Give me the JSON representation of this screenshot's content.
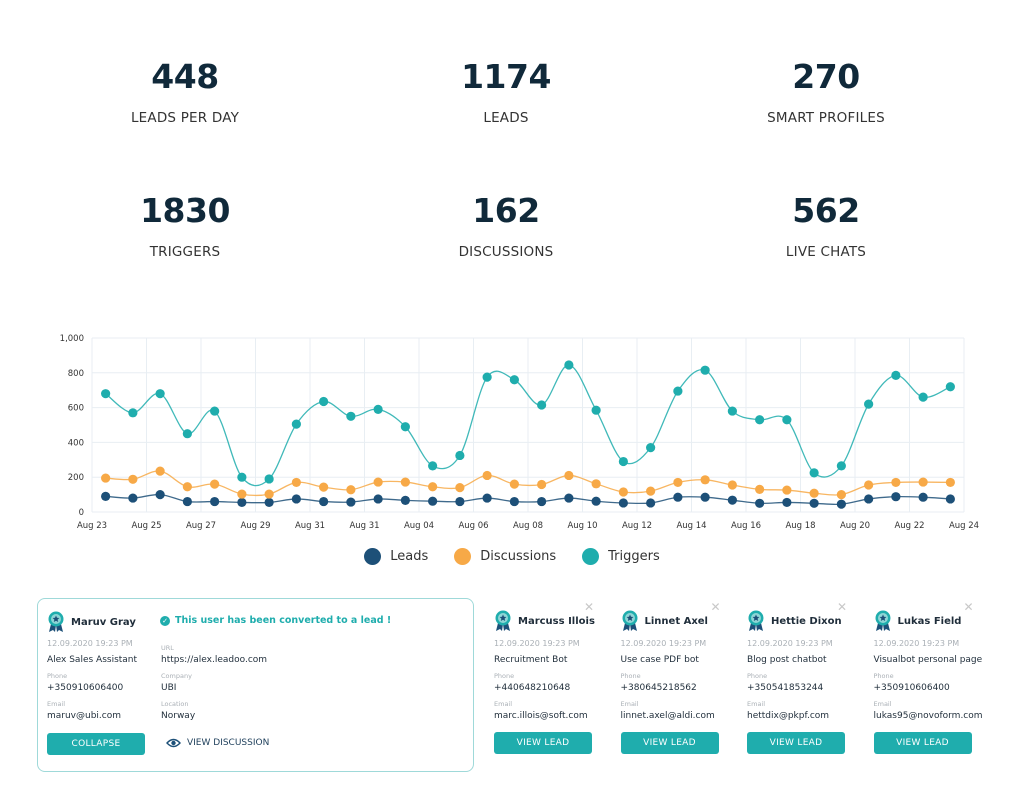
{
  "stats": [
    {
      "value": "448",
      "label": "LEADS PER DAY"
    },
    {
      "value": "1174",
      "label": "LEADS"
    },
    {
      "value": "270",
      "label": "SMART PROFILES"
    },
    {
      "value": "1830",
      "label": "TRIGGERS"
    },
    {
      "value": "162",
      "label": "DISCUSSIONS"
    },
    {
      "value": "562",
      "label": "LIVE CHATS"
    }
  ],
  "chart_data": {
    "type": "line",
    "ylim": [
      0,
      1000
    ],
    "y_ticks": [
      "0",
      "200",
      "400",
      "600",
      "800",
      "1,000"
    ],
    "x_tick_labels": [
      "Aug 23",
      "Aug 25",
      "Aug 27",
      "Aug 29",
      "Aug 31",
      "Aug 31",
      "Aug 04",
      "Aug 06",
      "Aug 08",
      "Aug 10",
      "Aug 12",
      "Aug 14",
      "Aug 16",
      "Aug 18",
      "Aug 20",
      "Aug 22",
      "Aug 24"
    ],
    "grid": true,
    "legend": "bottom",
    "series": [
      {
        "name": "Leads",
        "color": "#1d5078",
        "values": [
          90,
          80,
          100,
          60,
          60,
          55,
          55,
          75,
          60,
          57,
          75,
          67,
          62,
          60,
          80,
          60,
          60,
          80,
          62,
          52,
          52,
          85,
          85,
          68,
          50,
          55,
          50,
          45,
          75,
          88,
          85,
          75
        ]
      },
      {
        "name": "Discussions",
        "color": "#f7a947",
        "values": [
          195,
          188,
          235,
          145,
          160,
          103,
          103,
          170,
          143,
          128,
          172,
          172,
          145,
          140,
          210,
          160,
          158,
          210,
          162,
          115,
          120,
          170,
          185,
          155,
          130,
          126,
          108,
          100,
          155,
          170,
          172,
          170
        ]
      },
      {
        "name": "Triggers",
        "color": "#1fadad",
        "values": [
          680,
          570,
          680,
          450,
          580,
          200,
          190,
          505,
          635,
          550,
          590,
          490,
          265,
          325,
          775,
          760,
          615,
          845,
          585,
          290,
          370,
          695,
          815,
          580,
          530,
          530,
          225,
          265,
          620,
          785,
          660,
          720
        ]
      }
    ]
  },
  "main_card": {
    "name": "Maruv Gray",
    "converted": "This user has been converted to a lead !",
    "date": "12.09.2020 19:23 PM",
    "bot": "Alex Sales Assistant",
    "phone_label": "Phone",
    "phone": "+350910606400",
    "email_label": "Email",
    "email": "maruv@ubi.com",
    "url_label": "URL",
    "url": "https://alex.leadoo.com",
    "company_label": "Company",
    "company": "UBI",
    "location_label": "Location",
    "location": "Norway",
    "collapse": "COLLAPSE",
    "view_discussion": "VIEW DISCUSSION"
  },
  "lead_cards": [
    {
      "name": "Marcuss Illois",
      "date": "12.09.2020 19:23 PM",
      "bot": "Recruitment Bot",
      "phone_label": "Phone",
      "phone": "+440648210648",
      "email_label": "Email",
      "email": "marc.illois@soft.com",
      "button": "VIEW LEAD"
    },
    {
      "name": "Linnet Axel",
      "date": "12.09.2020 19:23 PM",
      "bot": "Use case PDF bot",
      "phone_label": "Phone",
      "phone": "+380645218562",
      "email_label": "Email",
      "email": "linnet.axel@aldi.com",
      "button": "VIEW LEAD"
    },
    {
      "name": "Hettie Dixon",
      "date": "12.09.2020 19:23 PM",
      "bot": "Blog post chatbot",
      "phone_label": "Phone",
      "phone": "+350541853244",
      "email_label": "Email",
      "email": "hettdix@pkpf.com",
      "button": "VIEW LEAD"
    },
    {
      "name": "Lukas Field",
      "date": "12.09.2020 19:23 PM",
      "bot": "Visualbot personal page",
      "phone_label": "Phone",
      "phone": "+350910606400",
      "email_label": "Email",
      "email": "lukas95@novoform.com",
      "button": "VIEW LEAD"
    }
  ]
}
